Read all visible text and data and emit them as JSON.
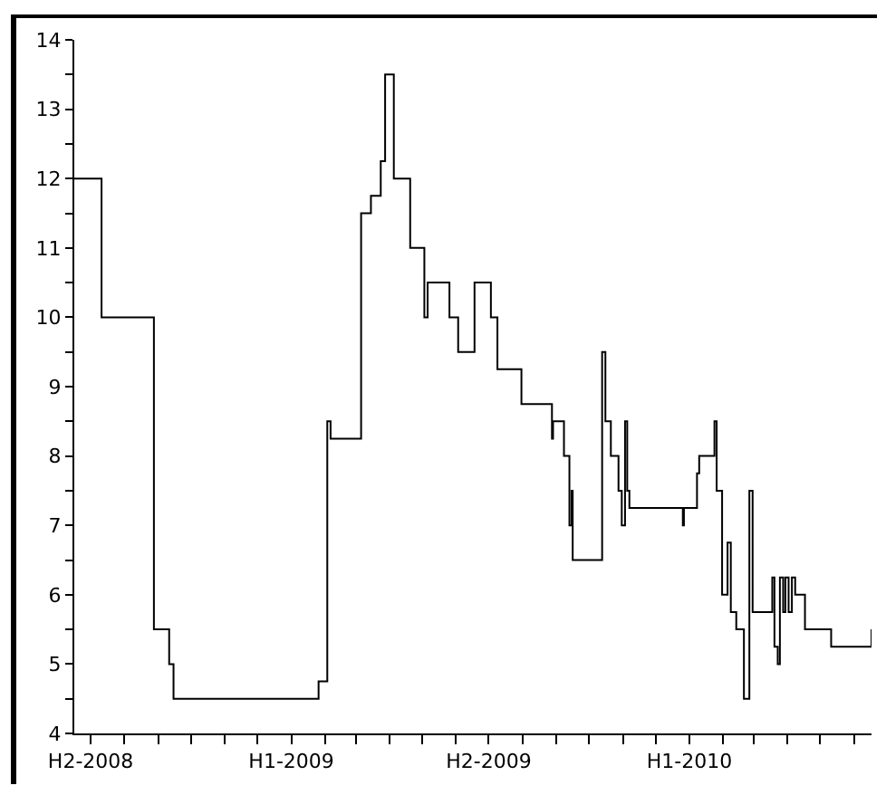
{
  "chart_data": {
    "type": "step",
    "color": "#000000",
    "line_style": "solid",
    "marker": "none",
    "grid": false,
    "x": [
      "2008-06-16",
      "2008-07-11",
      "2008-08-28",
      "2008-09-11",
      "2008-09-15",
      "2009-01-26",
      "2009-02-03",
      "2009-02-06",
      "2009-03-06",
      "2009-03-15",
      "2009-03-24",
      "2009-03-28",
      "2009-04-05",
      "2009-04-20",
      "2009-05-03",
      "2009-05-06",
      "2009-05-26",
      "2009-06-03",
      "2009-06-18",
      "2009-07-03",
      "2009-07-09",
      "2009-07-31",
      "2009-08-28",
      "2009-08-29",
      "2009-09-08",
      "2009-09-13",
      "2009-09-15",
      "2009-09-16",
      "2009-10-13",
      "2009-10-16",
      "2009-10-21",
      "2009-10-28",
      "2009-10-31",
      "2009-11-03",
      "2009-11-05",
      "2009-11-07",
      "2009-12-26",
      "2009-12-27",
      "2010-01-08",
      "2010-01-10",
      "2010-01-24",
      "2010-01-26",
      "2010-01-31",
      "2010-02-05",
      "2010-02-08",
      "2010-02-13",
      "2010-02-20",
      "2010-02-25",
      "2010-02-28",
      "2010-03-18",
      "2010-03-20",
      "2010-03-23",
      "2010-03-25",
      "2010-03-28",
      "2010-03-30",
      "2010-04-02",
      "2010-04-05",
      "2010-04-08",
      "2010-04-17",
      "2010-05-11",
      "2010-06-13",
      "2010-06-17"
    ],
    "values": [
      12,
      10,
      5.5,
      5,
      4.5,
      4.75,
      8.5,
      8.25,
      11.5,
      11.75,
      12.25,
      13.5,
      12,
      11,
      10,
      10.5,
      10,
      9.5,
      10.5,
      10,
      9.25,
      8.75,
      8.25,
      8.5,
      8,
      7,
      7.5,
      6.5,
      9.5,
      8.5,
      8,
      7.5,
      7,
      8.5,
      7.5,
      7.25,
      7,
      7.25,
      7.75,
      8,
      8.5,
      7.5,
      6,
      6.75,
      5.75,
      5.5,
      4.5,
      7.5,
      5.75,
      6.25,
      5.25,
      5,
      6.25,
      5.75,
      6.25,
      5.75,
      6.25,
      6,
      5.5,
      5.25,
      5.25,
      5.5
    ],
    "xlim": [
      "2008-06-16",
      "2010-06-17"
    ],
    "xticks": [
      {
        "value": "2008-07-01",
        "label": "H2-2008"
      },
      {
        "value": "2008-08-01",
        "label": null
      },
      {
        "value": "2008-09-01",
        "label": null
      },
      {
        "value": "2008-10-01",
        "label": null
      },
      {
        "value": "2008-11-01",
        "label": null
      },
      {
        "value": "2008-12-01",
        "label": null
      },
      {
        "value": "2009-01-01",
        "label": "H1-2009"
      },
      {
        "value": "2009-02-01",
        "label": null
      },
      {
        "value": "2009-03-01",
        "label": null
      },
      {
        "value": "2009-04-01",
        "label": null
      },
      {
        "value": "2009-05-01",
        "label": null
      },
      {
        "value": "2009-06-01",
        "label": null
      },
      {
        "value": "2009-07-01",
        "label": "H2-2009"
      },
      {
        "value": "2009-08-01",
        "label": null
      },
      {
        "value": "2009-09-01",
        "label": null
      },
      {
        "value": "2009-10-01",
        "label": null
      },
      {
        "value": "2009-11-01",
        "label": null
      },
      {
        "value": "2009-12-01",
        "label": null
      },
      {
        "value": "2010-01-01",
        "label": "H1-2010"
      },
      {
        "value": "2010-02-01",
        "label": null
      },
      {
        "value": "2010-03-01",
        "label": null
      },
      {
        "value": "2010-04-01",
        "label": null
      },
      {
        "value": "2010-05-01",
        "label": null
      },
      {
        "value": "2010-06-01",
        "label": null
      }
    ],
    "ylim": [
      4,
      14
    ],
    "yticks": [
      4,
      {
        "value": 4.5,
        "label": null
      },
      5,
      {
        "value": 5.5,
        "label": null
      },
      6,
      {
        "value": 6.5,
        "label": null
      },
      7,
      {
        "value": 7.5,
        "label": null
      },
      8,
      {
        "value": 8.5,
        "label": null
      },
      9,
      {
        "value": 9.5,
        "label": null
      },
      10,
      {
        "value": 10.5,
        "label": null
      },
      11,
      {
        "value": 11.5,
        "label": null
      },
      12,
      {
        "value": 12.5,
        "label": null
      },
      13,
      {
        "value": 13.5,
        "label": null
      },
      14
    ]
  }
}
